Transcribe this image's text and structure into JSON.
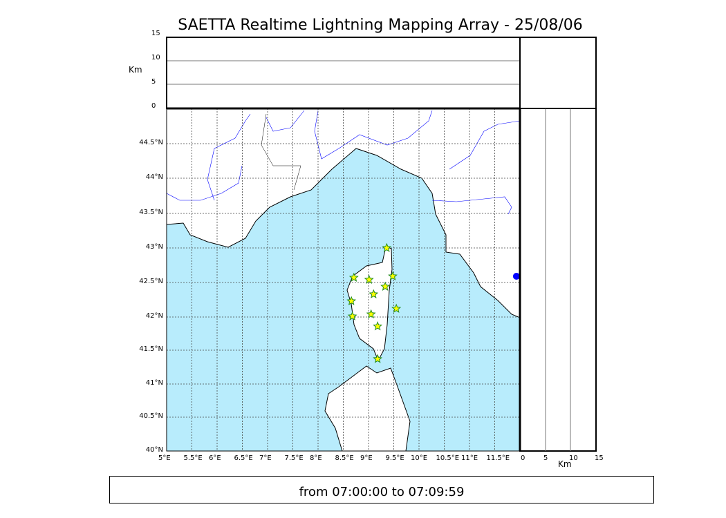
{
  "title": "SAETTA Realtime Lightning Mapping Array - 25/08/06",
  "footer": "from 07:00:00 to 07:09:59",
  "colors": {
    "sea": "#b8ecfc",
    "land": "#ffffff",
    "rivers": "#0000ff",
    "stars": "#ffff00",
    "star_edge": "#228b22",
    "station": "#0000ff"
  },
  "chart_data": {
    "type": "scatter",
    "title": "SAETTA Realtime Lightning Mapping Array - 25/08/06",
    "x_ticks": [
      "5°E",
      "5.5°E",
      "6°E",
      "6.5°E",
      "7°E",
      "7.5°E",
      "8°E",
      "8.5°E",
      "9°E",
      "9.5°E",
      "10°E",
      "10.5°E",
      "11°E",
      "11.5°E"
    ],
    "y_ticks": [
      "40°N",
      "40.5°N",
      "41°N",
      "41.5°N",
      "42°N",
      "42.5°N",
      "43°N",
      "43.5°N",
      "44°N",
      "44.5°N"
    ],
    "xlim": [
      5,
      12
    ],
    "ylim": [
      40,
      45
    ],
    "grid": true,
    "altitude_axis": {
      "label": "Km",
      "ticks": [
        "0",
        "5",
        "10",
        "15"
      ],
      "range": [
        0,
        15
      ]
    },
    "strikes": [
      {
        "lon": 9.36,
        "lat": 43.0
      },
      {
        "lon": 8.71,
        "lat": 42.57
      },
      {
        "lon": 9.01,
        "lat": 42.54
      },
      {
        "lon": 9.48,
        "lat": 42.59
      },
      {
        "lon": 9.33,
        "lat": 42.44
      },
      {
        "lon": 9.1,
        "lat": 42.33
      },
      {
        "lon": 8.66,
        "lat": 42.23
      },
      {
        "lon": 9.05,
        "lat": 42.04
      },
      {
        "lon": 8.68,
        "lat": 42.01
      },
      {
        "lon": 9.55,
        "lat": 42.12
      },
      {
        "lon": 9.18,
        "lat": 41.86
      },
      {
        "lon": 9.18,
        "lat": 41.37
      }
    ],
    "station": {
      "lon": 11.93,
      "lat": 42.59
    }
  }
}
